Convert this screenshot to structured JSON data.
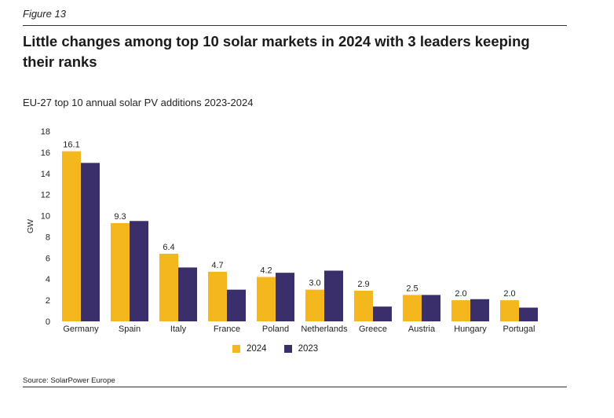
{
  "figure_label": "Figure 13",
  "title": "Little changes among top 10 solar markets in 2024 with 3 leaders keeping their ranks",
  "subtitle": "EU-27 top 10 annual solar PV additions 2023-2024",
  "source": "Source: SolarPower Europe",
  "colors": {
    "series_2024": "#F5B71E",
    "series_2023": "#3A2F6B"
  },
  "chart_data": {
    "type": "bar",
    "categories": [
      "Germany",
      "Spain",
      "Italy",
      "France",
      "Poland",
      "Netherlands",
      "Greece",
      "Austria",
      "Hungary",
      "Portugal"
    ],
    "series": [
      {
        "name": "2024",
        "values": [
          16.1,
          9.3,
          6.4,
          4.7,
          4.2,
          3.0,
          2.9,
          2.5,
          2.0,
          2.0
        ],
        "labels": [
          "16.1",
          "9.3",
          "6.4",
          "4.7",
          "4.2",
          "3.0",
          "2.9",
          "2.5",
          "2.0",
          "2.0"
        ]
      },
      {
        "name": "2023",
        "values": [
          15.0,
          9.5,
          5.1,
          3.0,
          4.6,
          4.8,
          1.4,
          2.5,
          2.1,
          1.3
        ]
      }
    ],
    "ylabel": "GW",
    "ylim": [
      0,
      18
    ],
    "yticks": [
      "0",
      "2",
      "4",
      "6",
      "8",
      "10",
      "12",
      "14",
      "16",
      "18"
    ],
    "grid": false,
    "legend": "bottom"
  }
}
